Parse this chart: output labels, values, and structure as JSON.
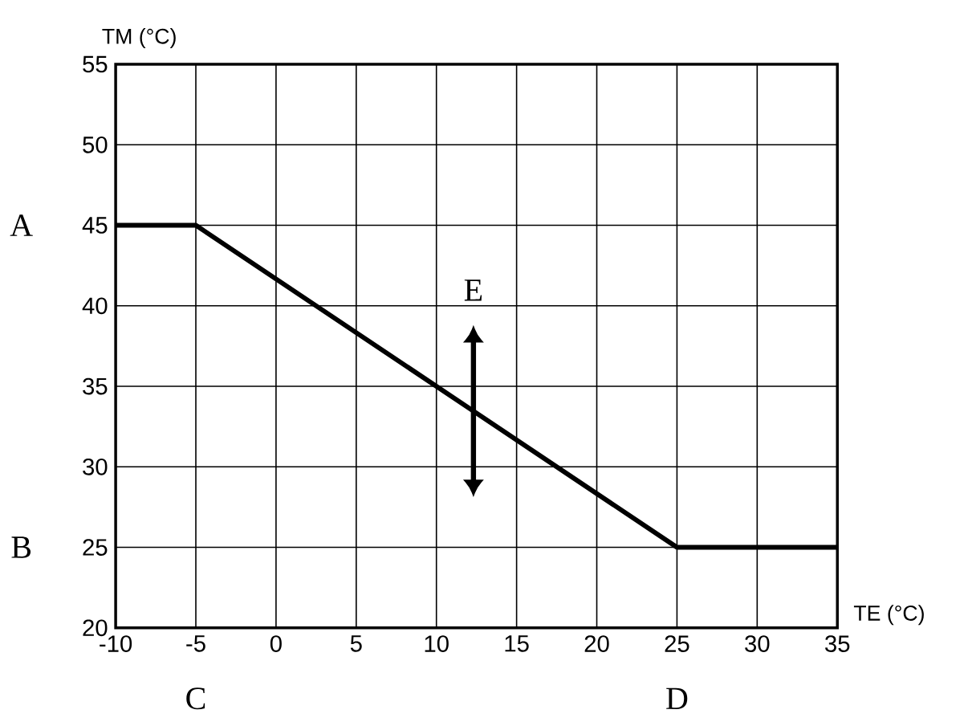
{
  "chart_data": {
    "type": "line",
    "xlabel": "TE (°C)",
    "ylabel": "TM (°C)",
    "x": [
      -10,
      -5,
      25,
      35
    ],
    "series": [
      {
        "color": "#000000",
        "values": [
          45,
          45,
          25,
          25
        ]
      }
    ],
    "xlim": [
      -10,
      35
    ],
    "xticks": [
      -10,
      -5,
      0,
      5,
      10,
      15,
      20,
      25,
      30,
      35
    ],
    "ylim": [
      20,
      55
    ],
    "yticks": [
      20,
      25,
      30,
      35,
      40,
      45,
      50,
      55
    ],
    "grid": true,
    "marker": "none",
    "line_style": "solid",
    "annotations": [
      "A",
      "B",
      "C",
      "D",
      "E"
    ]
  }
}
